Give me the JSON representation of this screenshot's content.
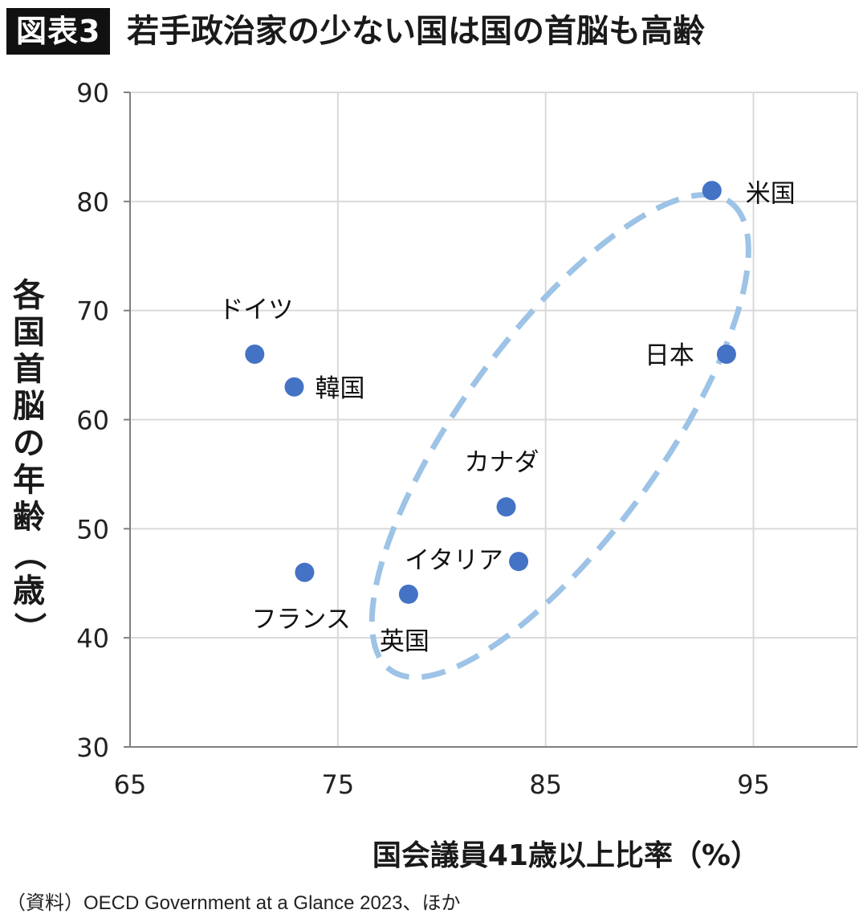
{
  "header": {
    "badge": "図表3",
    "title": "若手政治家の少ない国は国の首脳も高齢"
  },
  "source": "（資料）OECD Government at a Glance 2023、ほか",
  "chart_data": {
    "type": "scatter",
    "title": "若手政治家の少ない国は国の首脳も高齢",
    "xlabel": "国会議員41歳以上比率（%）",
    "ylabel": "各国首脳の年齢（歳）",
    "xlim": [
      65,
      100
    ],
    "ylim": [
      30,
      90
    ],
    "xticks": [
      65,
      75,
      85,
      95
    ],
    "yticks": [
      30,
      40,
      50,
      60,
      70,
      80,
      90
    ],
    "grid": true,
    "point_color": "#4472c4",
    "ellipse_color": "#9dc3e6",
    "points": [
      {
        "label": "米国",
        "x": 93.0,
        "y": 81
      },
      {
        "label": "日本",
        "x": 93.7,
        "y": 66
      },
      {
        "label": "ドイツ",
        "x": 71.0,
        "y": 66
      },
      {
        "label": "韓国",
        "x": 72.9,
        "y": 63
      },
      {
        "label": "カナダ",
        "x": 83.1,
        "y": 52
      },
      {
        "label": "イタリア",
        "x": 83.7,
        "y": 47
      },
      {
        "label": "フランス",
        "x": 73.4,
        "y": 46
      },
      {
        "label": "英国",
        "x": 78.4,
        "y": 44
      }
    ]
  }
}
